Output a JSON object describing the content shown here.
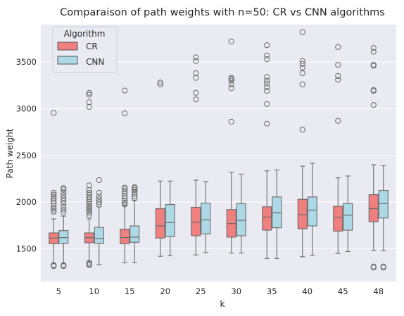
{
  "chart_data": {
    "type": "box",
    "title": "Comparaison of path weights with n=50: CR vs CNN algorithms",
    "xlabel": "k",
    "ylabel": "Path weight",
    "ylim": [
      1150,
      3900
    ],
    "yticks": [
      1500,
      2000,
      2500,
      3000,
      3500
    ],
    "ytick_labels": [
      "1500",
      "2000",
      "2500",
      "3000",
      "3500"
    ],
    "categories": [
      "5",
      "10",
      "15",
      "20",
      "25",
      "30",
      "35",
      "40",
      "45",
      "48"
    ],
    "grid": true,
    "legend": {
      "title": "Algorithm",
      "position": "top-left"
    },
    "series": [
      {
        "name": "CR",
        "color": "#f08080",
        "boxes": [
          {
            "whislo": 1340,
            "q1": 1555,
            "med": 1615,
            "q3": 1670,
            "whishi": 1820,
            "fliers": [
              1315,
              1320,
              1325,
              1895,
              1910,
              1930,
              1960,
              1990,
              2010,
              2035,
              2060,
              2080,
              2100,
              2955
            ]
          },
          {
            "whislo": 1370,
            "q1": 1565,
            "med": 1620,
            "q3": 1670,
            "whishi": 1820,
            "fliers": [
              1325,
              1335,
              1350,
              1860,
              1885,
              1905,
              1925,
              1945,
              1965,
              1985,
              2005,
              2030,
              2055,
              2080,
              2100,
              2130,
              2180,
              3020,
              3070,
              3150,
              3170
            ]
          },
          {
            "whislo": 1350,
            "q1": 1555,
            "med": 1620,
            "q3": 1710,
            "whishi": 1960,
            "fliers": [
              1975,
              1995,
              2015,
              2040,
              2060,
              2090,
              2120,
              2140,
              2155,
              2950,
              3195
            ]
          },
          {
            "whislo": 1420,
            "q1": 1615,
            "med": 1745,
            "q3": 1930,
            "whishi": 2225,
            "fliers": [
              3260,
              3280
            ]
          },
          {
            "whislo": 1435,
            "q1": 1640,
            "med": 1785,
            "q3": 1945,
            "whishi": 2235,
            "fliers": [
              3100,
              3170,
              3330,
              3380,
              3510,
              3550
            ]
          },
          {
            "whislo": 1455,
            "q1": 1625,
            "med": 1770,
            "q3": 1920,
            "whishi": 2320,
            "fliers": [
              2860,
              3220,
              3260,
              3300,
              3320,
              3330,
              3720
            ]
          },
          {
            "whislo": 1395,
            "q1": 1700,
            "med": 1840,
            "q3": 1950,
            "whishi": 2335,
            "fliers": [
              2840,
              3050,
              3190,
              3230,
              3270,
              3300,
              3340,
              3530,
              3570,
              3680
            ]
          },
          {
            "whislo": 1415,
            "q1": 1715,
            "med": 1865,
            "q3": 2030,
            "whishi": 2385,
            "fliers": [
              2775,
              3260,
              3380,
              3440,
              3480,
              3510,
              3820
            ]
          },
          {
            "whislo": 1450,
            "q1": 1690,
            "med": 1835,
            "q3": 1955,
            "whishi": 2260,
            "fliers": [
              2870,
              3310,
              3350,
              3470,
              3660
            ]
          },
          {
            "whislo": 1485,
            "q1": 1790,
            "med": 1930,
            "q3": 2080,
            "whishi": 2400,
            "fliers": [
              1300,
              1310,
              3040,
              3190,
              3200,
              3460,
              3470,
              3610,
              3650
            ]
          }
        ]
      },
      {
        "name": "CNN",
        "color": "#add8e6",
        "boxes": [
          {
            "whislo": 1340,
            "q1": 1560,
            "med": 1620,
            "q3": 1695,
            "whishi": 1850,
            "fliers": [
              1315,
              1320,
              1325,
              1890,
              1920,
              1950,
              1985,
              2015,
              2045,
              2075,
              2105,
              2135,
              2150
            ]
          },
          {
            "whislo": 1330,
            "q1": 1560,
            "med": 1610,
            "q3": 1730,
            "whishi": 1950,
            "fliers": [
              1975,
              2000,
              2030,
              2060,
              2100,
              2235
            ]
          },
          {
            "whislo": 1350,
            "q1": 1570,
            "med": 1625,
            "q3": 1745,
            "whishi": 2020,
            "fliers": [
              2040,
              2060,
              2090,
              2110,
              2130,
              2150,
              2160
            ]
          },
          {
            "whislo": 1425,
            "q1": 1630,
            "med": 1780,
            "q3": 1975,
            "whishi": 2225,
            "fliers": []
          },
          {
            "whislo": 1460,
            "q1": 1660,
            "med": 1810,
            "q3": 1990,
            "whishi": 2220,
            "fliers": []
          },
          {
            "whislo": 1455,
            "q1": 1640,
            "med": 1805,
            "q3": 1985,
            "whishi": 2300,
            "fliers": []
          },
          {
            "whislo": 1395,
            "q1": 1725,
            "med": 1885,
            "q3": 2055,
            "whishi": 2345,
            "fliers": []
          },
          {
            "whislo": 1430,
            "q1": 1745,
            "med": 1915,
            "q3": 2055,
            "whishi": 2415,
            "fliers": []
          },
          {
            "whislo": 1470,
            "q1": 1700,
            "med": 1860,
            "q3": 1985,
            "whishi": 2280,
            "fliers": []
          },
          {
            "whislo": 1480,
            "q1": 1830,
            "med": 1985,
            "q3": 2125,
            "whishi": 2390,
            "fliers": [
              1300,
              1310
            ]
          }
        ]
      }
    ]
  }
}
